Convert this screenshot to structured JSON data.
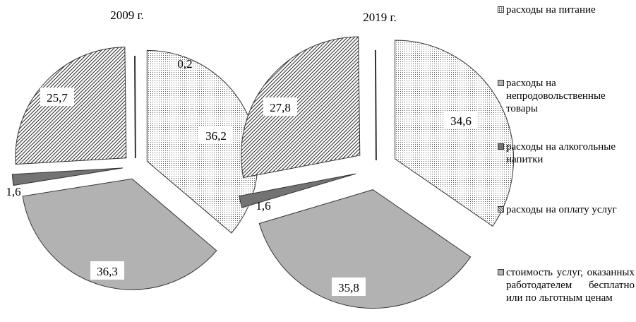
{
  "chart_data": [
    {
      "type": "pie",
      "title": "2009 г.",
      "categories": [
        "расходы на питание",
        "расходы на непродовольственные товары",
        "расходы на алкогольные напитки",
        "расходы на оплату услуг",
        "стоимость услуг, оказанных работодателем бесплатно или по льготным ценам"
      ],
      "values": [
        36.2,
        36.3,
        1.6,
        25.7,
        0.2
      ],
      "labels": [
        "36,2",
        "36,3",
        "1,6",
        "25,7",
        "0,2"
      ]
    },
    {
      "type": "pie",
      "title": "2019 г.",
      "categories": [
        "расходы на питание",
        "расходы на непродовольственные товары",
        "расходы на алкогольные напитки",
        "расходы на оплату услуг",
        "стоимость услуг, оказанных работодателем бесплатно или по льготным ценам"
      ],
      "values": [
        34.6,
        35.8,
        1.6,
        27.8,
        0.2
      ],
      "labels": [
        "34,6",
        "35,8",
        "1,6",
        "27,8",
        ""
      ]
    }
  ],
  "legend": [
    {
      "label": "расходы на питание",
      "pattern": "dots"
    },
    {
      "label": "расходы на непродовольственные товары",
      "pattern": "gray"
    },
    {
      "label": "расходы на алкогольные напитки",
      "pattern": "dark"
    },
    {
      "label": "расходы на оплату услуг",
      "pattern": "hatch"
    },
    {
      "label": "стоимость услуг, оказанных работодателем бесплатно или по льготным ценам",
      "pattern": "gray"
    }
  ],
  "colors": {
    "gray": "#b2b2b2",
    "dark": "#737373",
    "outline": "#333333"
  }
}
